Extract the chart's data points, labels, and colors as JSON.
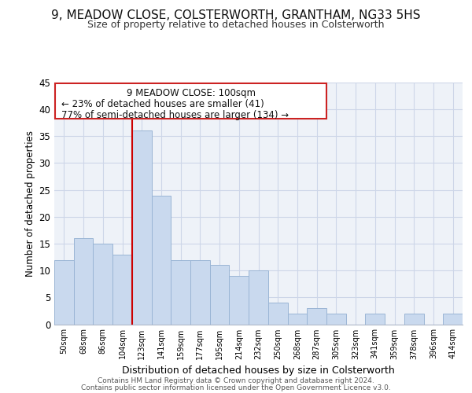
{
  "title": "9, MEADOW CLOSE, COLSTERWORTH, GRANTHAM, NG33 5HS",
  "subtitle": "Size of property relative to detached houses in Colsterworth",
  "xlabel": "Distribution of detached houses by size in Colsterworth",
  "ylabel": "Number of detached properties",
  "bin_labels": [
    "50sqm",
    "68sqm",
    "86sqm",
    "104sqm",
    "123sqm",
    "141sqm",
    "159sqm",
    "177sqm",
    "195sqm",
    "214sqm",
    "232sqm",
    "250sqm",
    "268sqm",
    "287sqm",
    "305sqm",
    "323sqm",
    "341sqm",
    "359sqm",
    "378sqm",
    "396sqm",
    "414sqm"
  ],
  "bar_values": [
    12,
    16,
    15,
    13,
    36,
    24,
    12,
    12,
    11,
    9,
    10,
    4,
    2,
    3,
    2,
    0,
    2,
    0,
    2,
    0,
    2
  ],
  "bar_color": "#c9d9ee",
  "bar_edge_color": "#9ab5d5",
  "vline_x": 3.5,
  "vline_color": "#cc0000",
  "ylim": [
    0,
    45
  ],
  "yticks": [
    0,
    5,
    10,
    15,
    20,
    25,
    30,
    35,
    40,
    45
  ],
  "ann_line1": "9 MEADOW CLOSE: 100sqm",
  "ann_line2": "← 23% of detached houses are smaller (41)",
  "ann_line3": "77% of semi-detached houses are larger (134) →",
  "footer_line1": "Contains HM Land Registry data © Crown copyright and database right 2024.",
  "footer_line2": "Contains public sector information licensed under the Open Government Licence v3.0.",
  "background_color": "#ffffff",
  "grid_color": "#cdd6e8",
  "plot_bg": "#eef2f8"
}
